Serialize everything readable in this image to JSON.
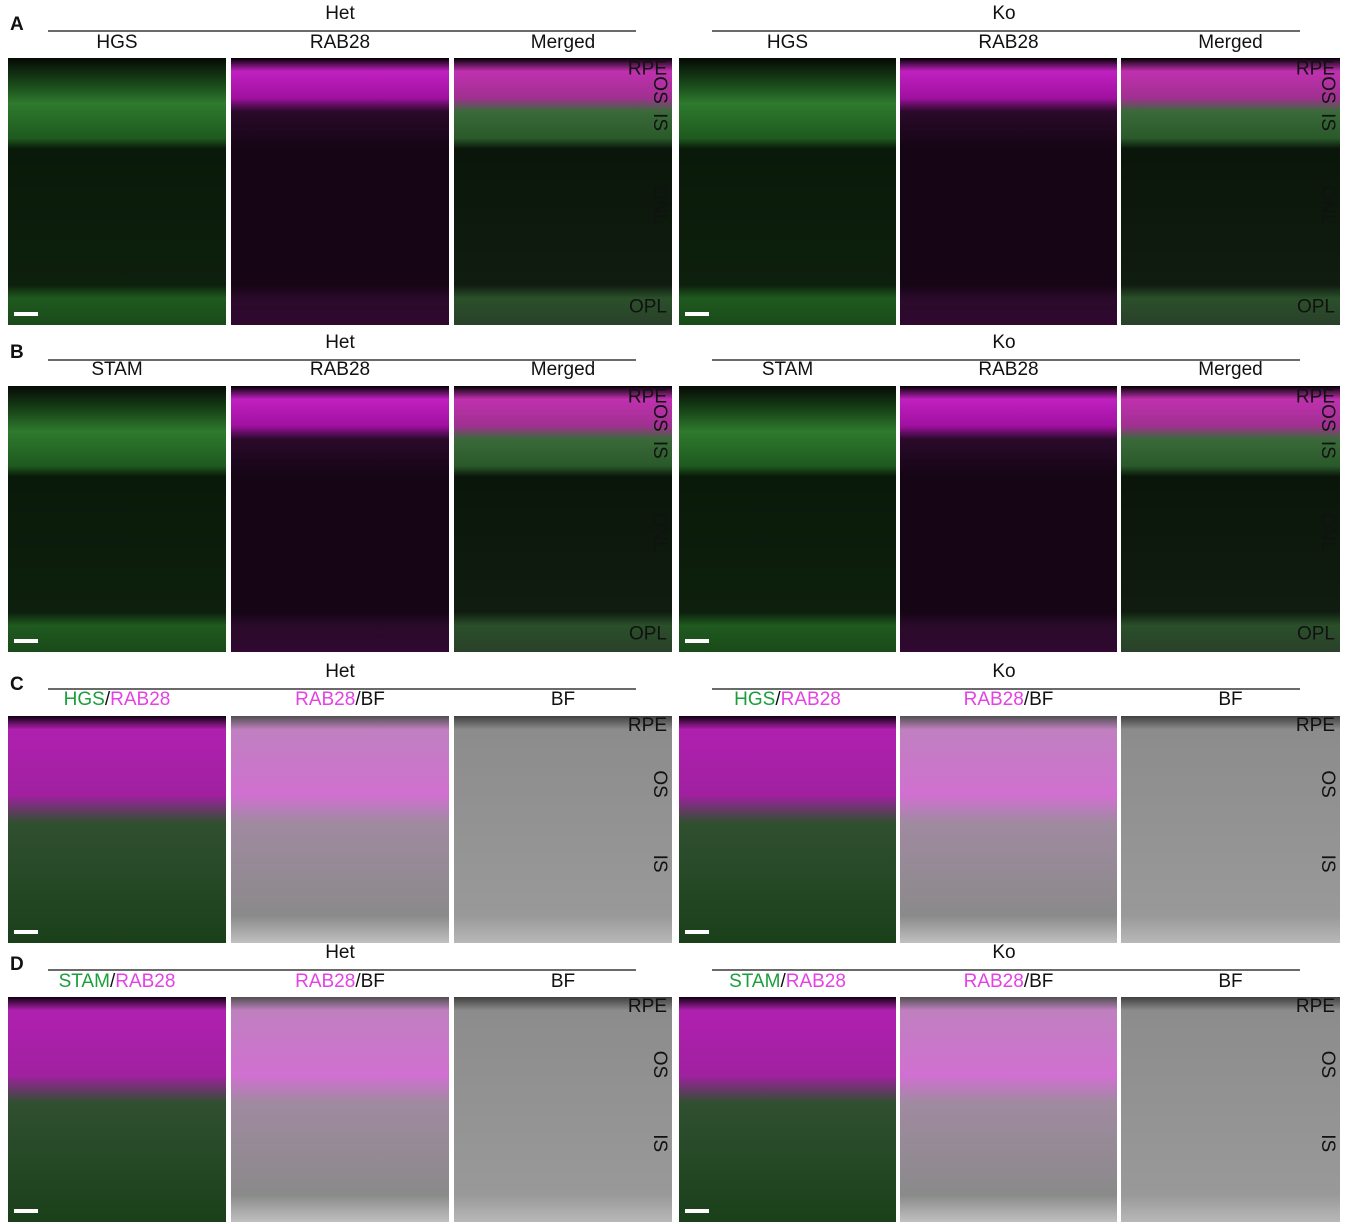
{
  "figure": {
    "panels": [
      {
        "letter": "A",
        "groups": [
          {
            "title": "Het",
            "columns": [
              [
                {
                  "text": "HGS"
                }
              ],
              [
                {
                  "text": "RAB28"
                }
              ],
              [
                {
                  "text": "Merged"
                }
              ]
            ],
            "layers": [
              "RPE",
              "OS",
              "IS",
              "ONL",
              "OPL"
            ]
          },
          {
            "title": "Ko",
            "columns": [
              [
                {
                  "text": "HGS"
                }
              ],
              [
                {
                  "text": "RAB28"
                }
              ],
              [
                {
                  "text": "Merged"
                }
              ]
            ],
            "layers": [
              "RPE",
              "OS",
              "IS",
              "ONL",
              "OPL"
            ]
          }
        ]
      },
      {
        "letter": "B",
        "groups": [
          {
            "title": "Het",
            "columns": [
              [
                {
                  "text": "STAM"
                }
              ],
              [
                {
                  "text": "RAB28"
                }
              ],
              [
                {
                  "text": "Merged"
                }
              ]
            ],
            "layers": [
              "RPE",
              "OS",
              "IS",
              "ONL",
              "OPL"
            ]
          },
          {
            "title": "Ko",
            "columns": [
              [
                {
                  "text": "STAM"
                }
              ],
              [
                {
                  "text": "RAB28"
                }
              ],
              [
                {
                  "text": "Merged"
                }
              ]
            ],
            "layers": [
              "RPE",
              "OS",
              "IS",
              "ONL",
              "OPL"
            ]
          }
        ]
      },
      {
        "letter": "C",
        "groups": [
          {
            "title": "Het",
            "columns": [
              [
                {
                  "text": "HGS",
                  "color": "#1a9f3a"
                },
                {
                  "text": "/"
                },
                {
                  "text": "RAB28",
                  "color": "#e442e4"
                }
              ],
              [
                {
                  "text": "RAB28",
                  "color": "#e442e4"
                },
                {
                  "text": "/BF"
                }
              ],
              [
                {
                  "text": "BF"
                }
              ]
            ],
            "layers": [
              "RPE",
              "OS",
              "IS"
            ]
          },
          {
            "title": "Ko",
            "columns": [
              [
                {
                  "text": "HGS",
                  "color": "#1a9f3a"
                },
                {
                  "text": "/"
                },
                {
                  "text": "RAB28",
                  "color": "#e442e4"
                }
              ],
              [
                {
                  "text": "RAB28",
                  "color": "#e442e4"
                },
                {
                  "text": "/BF"
                }
              ],
              [
                {
                  "text": "BF"
                }
              ]
            ],
            "layers": [
              "RPE",
              "OS",
              "IS"
            ]
          }
        ]
      },
      {
        "letter": "D",
        "groups": [
          {
            "title": "Het",
            "columns": [
              [
                {
                  "text": "STAM",
                  "color": "#1a9f3a"
                },
                {
                  "text": "/"
                },
                {
                  "text": "RAB28",
                  "color": "#e442e4"
                }
              ],
              [
                {
                  "text": "RAB28",
                  "color": "#e442e4"
                },
                {
                  "text": "/BF"
                }
              ],
              [
                {
                  "text": "BF"
                }
              ]
            ],
            "layers": [
              "RPE",
              "OS",
              "IS"
            ]
          },
          {
            "title": "Ko",
            "columns": [
              [
                {
                  "text": "STAM",
                  "color": "#1a9f3a"
                },
                {
                  "text": "/"
                },
                {
                  "text": "RAB28",
                  "color": "#e442e4"
                }
              ],
              [
                {
                  "text": "RAB28",
                  "color": "#e442e4"
                },
                {
                  "text": "/BF"
                }
              ],
              [
                {
                  "text": "BF"
                }
              ]
            ],
            "layers": [
              "RPE",
              "OS",
              "IS"
            ]
          }
        ]
      }
    ]
  }
}
